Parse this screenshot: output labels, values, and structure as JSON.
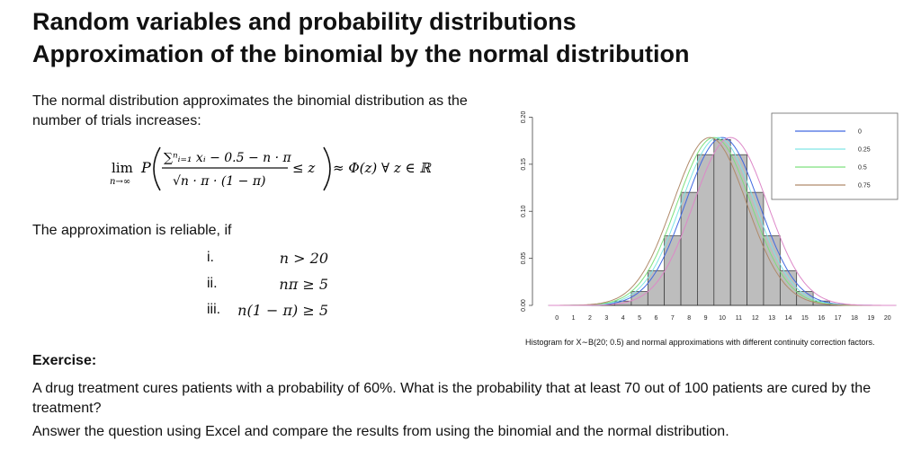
{
  "title": {
    "line1": "Random variables and probability distributions",
    "line2": "Approximation of the binomial by the normal distribution"
  },
  "intro": "The normal distribution approximates the binomial distribution as the number of trials increases:",
  "formula": {
    "lim": "lim",
    "lim_sub": "n→∞",
    "p": "P",
    "numerator": "∑ⁿᵢ₌₁ xᵢ − 0.5 − n · π",
    "denominator": "√n · π · (1 − π)",
    "rhs": "≤ z",
    "result": "≈ Φ(z) ∀ z ∈ ℝ"
  },
  "reliable_intro": "The approximation is reliable, if",
  "conditions": [
    {
      "num": "i.",
      "expr": "n > 20"
    },
    {
      "num": "ii.",
      "expr": "nπ ≥ 5"
    },
    {
      "num": "iii.",
      "expr": "n(1 − π) ≥ 5"
    }
  ],
  "chart_data": {
    "type": "bar",
    "n": 20,
    "p": 0.5,
    "categories": [
      "0",
      "1",
      "2",
      "3",
      "4",
      "5",
      "6",
      "7",
      "8",
      "9",
      "10",
      "11",
      "12",
      "13",
      "14",
      "15",
      "16",
      "17",
      "18",
      "19",
      "20"
    ],
    "values": [
      1e-06,
      1.9e-05,
      0.000181,
      0.001087,
      0.004621,
      0.014786,
      0.036964,
      0.073929,
      0.120134,
      0.160179,
      0.176197,
      0.160179,
      0.120134,
      0.073929,
      0.036964,
      0.014786,
      0.004621,
      0.001087,
      0.000181,
      1.9e-05,
      1e-06
    ],
    "y_ticks": [
      "0.00",
      "0.05",
      "0.10",
      "0.15",
      "0.20"
    ],
    "ylim": [
      0,
      0.21
    ],
    "xlim": [
      -0.5,
      20.5
    ],
    "mean": 10,
    "sd": 2.2360679775,
    "series": [
      {
        "name": "0",
        "shift": 0,
        "color": "#4169e1"
      },
      {
        "name": "0.25",
        "shift": 0.25,
        "color": "#7fe5e5"
      },
      {
        "name": "0.5",
        "shift": 0.5,
        "color": "#7ee07e"
      },
      {
        "name": "0.75",
        "shift": 0.75,
        "color": "#b08a6a"
      }
    ],
    "extra_curve_color": "#dd88c8",
    "legend_position": "top-right",
    "caption": "Histogram for X∼B(20; 0.5) and normal approximations with different continuity correction factors."
  },
  "exercise": {
    "heading": "Exercise:",
    "text": "A drug treatment cures patients with a probability of 60%. What is the probability that at least 70 out of 100 patients are cured by the treatment?",
    "task": "Answer the question using Excel and compare the results from using the binomial and the normal distribution."
  }
}
